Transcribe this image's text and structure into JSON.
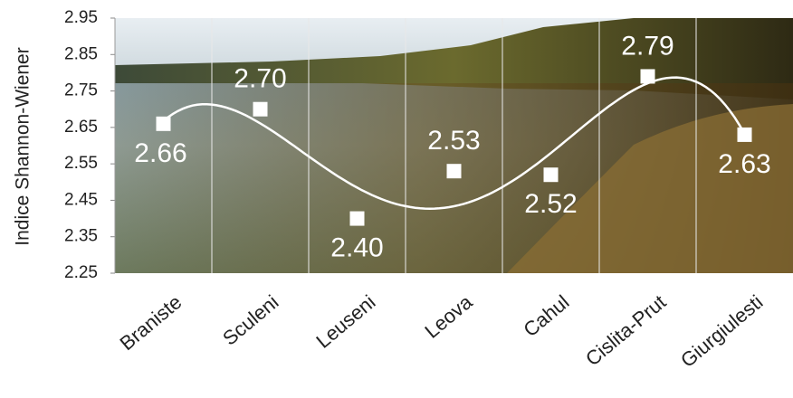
{
  "chart_data": {
    "type": "scatter",
    "y_label": "Indice Shannon-Wiener",
    "categories": [
      "Braniste",
      "Sculeni",
      "Leuseni",
      "Leova",
      "Cahul",
      "Cislita-Prut",
      "Giurgiulesti"
    ],
    "values": [
      2.66,
      2.7,
      2.4,
      2.53,
      2.52,
      2.79,
      2.63
    ],
    "value_labels": [
      "2.66",
      "2.70",
      "2.40",
      "2.53",
      "2.52",
      "2.79",
      "2.63"
    ],
    "color": "#ffffff",
    "trendline": "polynomial",
    "trendline_order": 4,
    "ylim": [
      2.25,
      2.95
    ],
    "yticks": [
      2.25,
      2.35,
      2.45,
      2.55,
      2.65,
      2.75,
      2.85,
      2.95
    ],
    "grid": true
  }
}
